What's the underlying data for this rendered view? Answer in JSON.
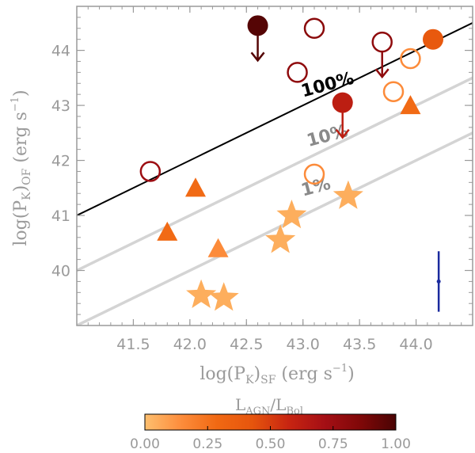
{
  "chart_data": {
    "type": "scatter",
    "title": "",
    "x_label_main": "log(P",
    "x_label_sub": "K",
    "x_label_paren": ")",
    "x_label_sub2": "SF",
    "x_label_units": " (erg s",
    "x_label_exp": "−1",
    "x_label_end": ")",
    "y_label_main": "log(P",
    "y_label_sub": "K",
    "y_label_paren": ")",
    "y_label_sub2": "OF",
    "y_label_units": " (erg s",
    "y_label_exp": "−1",
    "y_label_end": ")",
    "xlim": [
      41.0,
      44.5
    ],
    "ylim": [
      39.0,
      44.8
    ],
    "x_ticks": [
      "41.5",
      "42.0",
      "42.5",
      "43.0",
      "43.5",
      "44.0"
    ],
    "x_tick_values": [
      41.5,
      42.0,
      42.5,
      43.0,
      43.5,
      44.0
    ],
    "y_ticks": [
      "40",
      "41",
      "42",
      "43",
      "44"
    ],
    "y_tick_values": [
      40,
      41,
      42,
      43,
      44
    ],
    "grid": false,
    "lines": [
      {
        "label": "100%",
        "offset": 0.0,
        "color": "#000000",
        "label_color": "#000000",
        "label_x": 43.0,
        "label_y": 43.15,
        "label_angle": -15
      },
      {
        "label": "10%",
        "offset": -1.0,
        "color": "#d4d4d4",
        "label_color": "#8a8a8a",
        "label_x": 43.05,
        "label_y": 42.25,
        "label_angle": -15
      },
      {
        "label": "1%",
        "offset": -2.0,
        "color": "#d4d4d4",
        "label_color": "#8a8a8a",
        "label_x": 43.0,
        "label_y": 41.35,
        "label_angle": -15
      }
    ],
    "points": [
      {
        "marker": "circle-open",
        "x": 41.65,
        "y": 41.8,
        "lagn": 0.75,
        "upper_limit": false
      },
      {
        "marker": "circle-filled",
        "x": 42.6,
        "y": 44.45,
        "lagn": 0.97,
        "upper_limit": true
      },
      {
        "marker": "circle-open",
        "x": 43.1,
        "y": 44.4,
        "lagn": 0.82,
        "upper_limit": false
      },
      {
        "marker": "circle-open",
        "x": 42.95,
        "y": 43.6,
        "lagn": 0.8,
        "upper_limit": false
      },
      {
        "marker": "circle-open",
        "x": 43.7,
        "y": 44.15,
        "lagn": 0.8,
        "upper_limit": true
      },
      {
        "marker": "circle-filled",
        "x": 43.35,
        "y": 43.05,
        "lagn": 0.62,
        "upper_limit": true
      },
      {
        "marker": "circle-filled",
        "x": 44.15,
        "y": 44.2,
        "lagn": 0.4,
        "upper_limit": false
      },
      {
        "marker": "circle-open",
        "x": 43.95,
        "y": 43.85,
        "lagn": 0.15,
        "upper_limit": false
      },
      {
        "marker": "circle-open",
        "x": 43.8,
        "y": 43.25,
        "lagn": 0.15,
        "upper_limit": false
      },
      {
        "marker": "circle-open",
        "x": 43.1,
        "y": 41.75,
        "lagn": 0.15,
        "upper_limit": false
      },
      {
        "marker": "triangle",
        "x": 43.95,
        "y": 43.0,
        "lagn": 0.28,
        "upper_limit": false
      },
      {
        "marker": "triangle",
        "x": 42.05,
        "y": 41.5,
        "lagn": 0.28,
        "upper_limit": false
      },
      {
        "marker": "triangle",
        "x": 41.8,
        "y": 40.7,
        "lagn": 0.28,
        "upper_limit": false
      },
      {
        "marker": "triangle",
        "x": 42.25,
        "y": 40.4,
        "lagn": 0.15,
        "upper_limit": false
      },
      {
        "marker": "star",
        "x": 42.1,
        "y": 39.55,
        "lagn": 0.05,
        "upper_limit": false
      },
      {
        "marker": "star",
        "x": 42.3,
        "y": 39.5,
        "lagn": 0.05,
        "upper_limit": false
      },
      {
        "marker": "star",
        "x": 42.8,
        "y": 40.55,
        "lagn": 0.05,
        "upper_limit": false
      },
      {
        "marker": "star",
        "x": 42.9,
        "y": 41.0,
        "lagn": 0.05,
        "upper_limit": false
      },
      {
        "marker": "star",
        "x": 43.4,
        "y": 41.35,
        "lagn": 0.05,
        "upper_limit": false
      }
    ],
    "error_bar": {
      "x": 44.2,
      "y": 39.8,
      "yerr": 0.55,
      "color": "#1a2a9e"
    },
    "colorbar": {
      "title_main": "L",
      "title_sub1": "AGN",
      "title_slash": "/L",
      "title_sub2": "Bol",
      "range": [
        0.0,
        1.0
      ],
      "ticks": [
        "0.00",
        "0.25",
        "0.50",
        "0.75",
        "1.00"
      ],
      "tick_values": [
        0.0,
        0.25,
        0.5,
        0.75,
        1.0
      ],
      "colors": [
        "#fdbf6f",
        "#fd8d3c",
        "#f16913",
        "#e6550d",
        "#c82511",
        "#a50f15",
        "#800808",
        "#4a0404"
      ]
    }
  }
}
